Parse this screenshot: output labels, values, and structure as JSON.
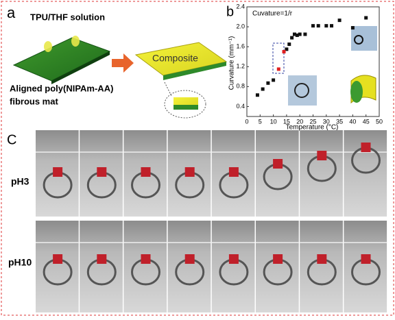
{
  "panel_a": {
    "label": "a",
    "solution": "TPU/THF solution",
    "composite": "Composite",
    "mat": [
      "Aligned poly(NIPAm-AA)",
      "fibrous mat"
    ]
  },
  "panel_b": {
    "label": "b"
  },
  "chart_data": {
    "type": "scatter",
    "annotation": "Cuvature=1/r",
    "x_label": "Temperature (°C)",
    "y_label": "Curvature (mm⁻¹)",
    "xlim": [
      0,
      50
    ],
    "ylim": [
      0.2,
      2.4
    ],
    "xticks": [
      0,
      5,
      10,
      15,
      20,
      25,
      30,
      35,
      40,
      45,
      50
    ],
    "yticks": [
      0.4,
      0.8,
      1.2,
      1.6,
      {
        "value": 2,
        "label": "2.0"
      },
      2.4
    ],
    "series": [
      {
        "color": "#111111",
        "x": [
          4,
          6,
          8,
          10,
          15,
          16,
          17,
          18,
          19,
          20,
          22,
          25,
          27,
          30,
          32,
          35,
          40,
          45
        ],
        "values": [
          0.63,
          0.75,
          0.87,
          0.93,
          1.55,
          1.65,
          1.78,
          1.85,
          1.83,
          1.85,
          1.85,
          2.02,
          2.02,
          2.02,
          2.02,
          2.13,
          1.98,
          2.18
        ]
      },
      {
        "color": "#e02020",
        "x": [
          12,
          14
        ],
        "values": [
          1.15,
          1.5
        ]
      }
    ]
  },
  "panel_c": {
    "label": "C",
    "rows": [
      "pH3",
      "pH10"
    ]
  }
}
